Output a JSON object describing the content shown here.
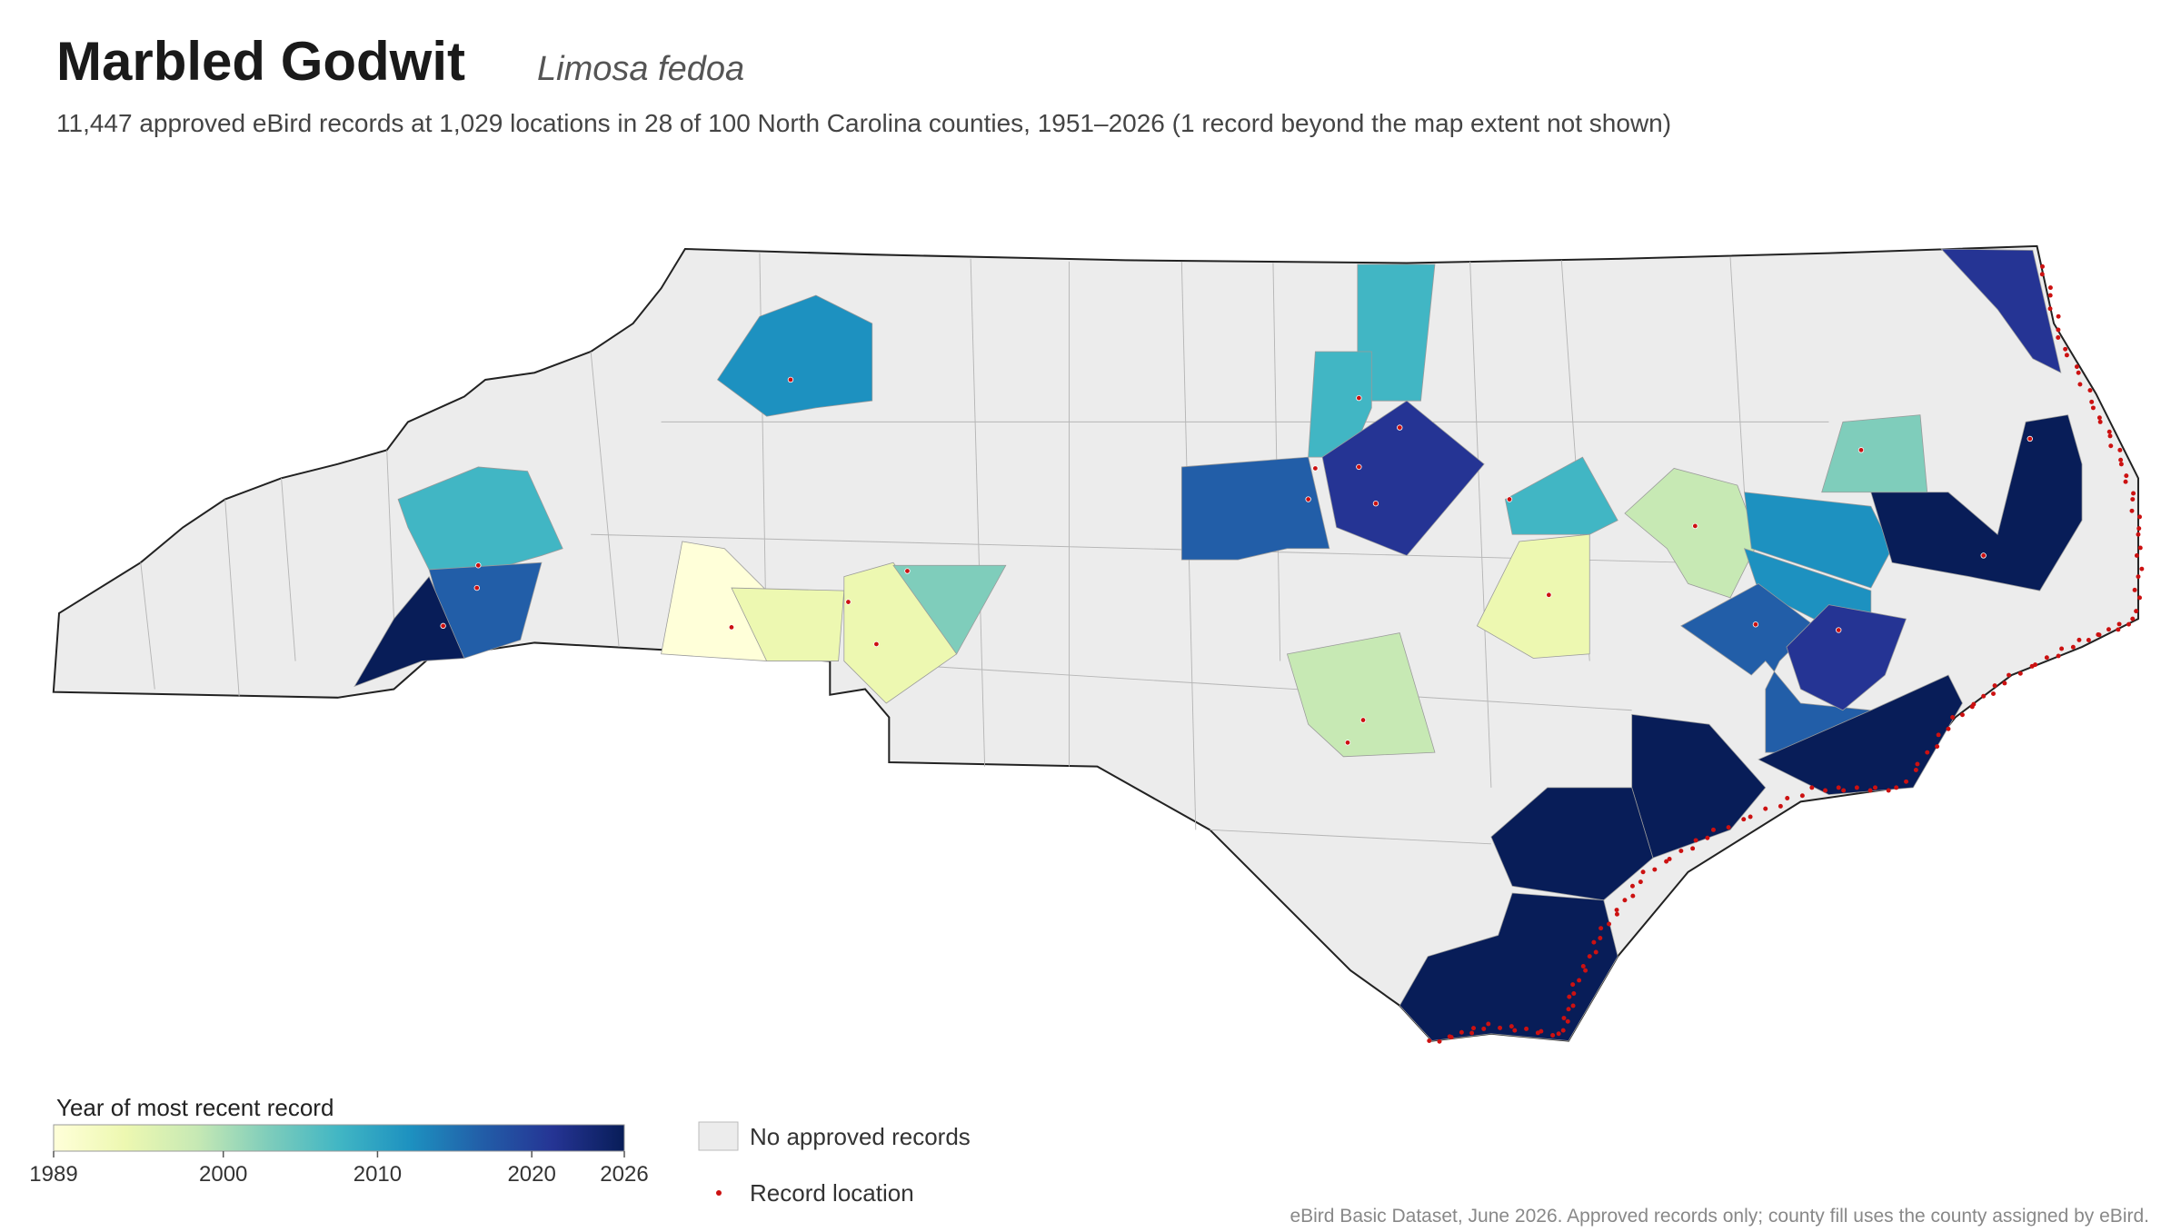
{
  "title": "Marbled Godwit",
  "scientific_name": "Limosa fedoa",
  "subtitle": "11,447 approved eBird records at 1,029 locations in 28 of 100 North Carolina counties, 1951–2026 (1 record beyond the map extent not shown)",
  "legend": {
    "title": "Year of most recent record",
    "lim": [
      1989,
      2026
    ],
    "ticks": [
      1989,
      2000,
      2010,
      2020,
      2026
    ],
    "colors": [
      "#ffffd9",
      "#edf8b1",
      "#c7e9b4",
      "#7fcdbb",
      "#41b6c4",
      "#1d91c0",
      "#225ea8",
      "#253494",
      "#081d58"
    ],
    "no_data_label": "No approved records",
    "no_data_color": "#ececec",
    "points_label": "Record location",
    "point_color": "#cc1111"
  },
  "source": "eBird Basic Dataset, June 2026. Approved records only; county fill uses the county assigned by eBird."
}
